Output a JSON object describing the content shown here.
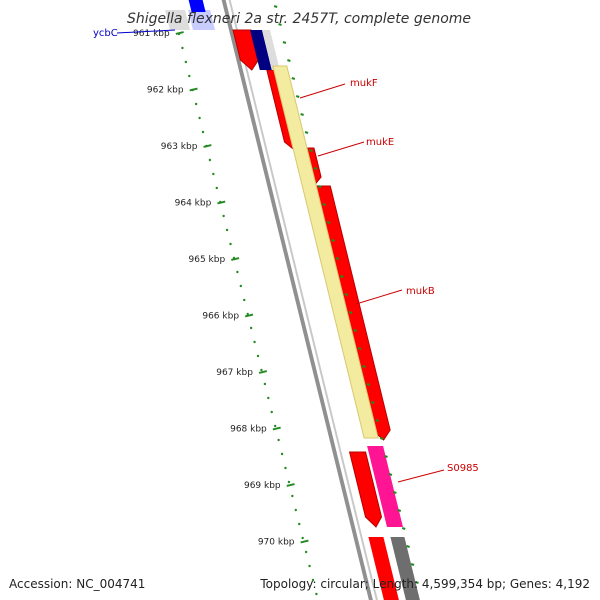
{
  "title": "Shigella flexneri 2a str. 2457T, complete genome",
  "footer": {
    "accession_text": "Accession: NC_004741",
    "topology_text": "Topology: circular; Length: 4,599,354 bp; Genes: 4,192"
  },
  "ticks": [
    {
      "kbp": 961,
      "label": "961 kbp"
    },
    {
      "kbp": 962,
      "label": "962 kbp"
    },
    {
      "kbp": 963,
      "label": "963 kbp"
    },
    {
      "kbp": 964,
      "label": "964 kbp"
    },
    {
      "kbp": 965,
      "label": "965 kbp"
    },
    {
      "kbp": 966,
      "label": "966 kbp"
    },
    {
      "kbp": 967,
      "label": "967 kbp"
    },
    {
      "kbp": 968,
      "label": "968 kbp"
    },
    {
      "kbp": 969,
      "label": "969 kbp"
    },
    {
      "kbp": 970,
      "label": "970 kbp"
    }
  ],
  "genes": [
    {
      "label": "ycbC",
      "color": "#0000cc"
    },
    {
      "label": "mukF",
      "color": "#cc0000"
    },
    {
      "label": "mukE",
      "color": "#cc0000"
    },
    {
      "label": "mukB",
      "color": "#cc0000"
    },
    {
      "label": "S0985",
      "color": "#cc0000"
    }
  ],
  "colors": {
    "forward_track": "#ff0000",
    "forward_track_shade": "#b80000",
    "annotation_light": "#f3eba0",
    "annotation_light_edge": "#d8c870",
    "annotation_pink": "#ff1493",
    "annotation_blue": "#000080",
    "backbone": "#909090",
    "backbone_dark": "#4a4a4a",
    "tick_color": "#228b22"
  }
}
